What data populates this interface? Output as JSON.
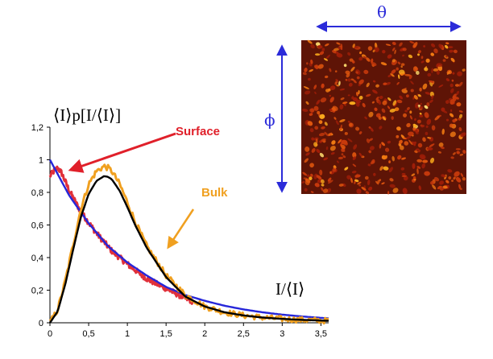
{
  "chart_data": {
    "type": "line",
    "ylabel": "⟨I⟩p[I/⟨I⟩]",
    "xlabel": "I/⟨I⟩",
    "xlim": [
      0,
      3.6
    ],
    "ylim": [
      0,
      1.2
    ],
    "x_tick_labels": [
      "0",
      "0,5",
      "1",
      "1,5",
      "2",
      "2,5",
      "3",
      "3,5"
    ],
    "y_tick_labels": [
      "0",
      "0,2",
      "0,4",
      "0,6",
      "0,8",
      "1",
      "1,2"
    ],
    "grid": false,
    "series": [
      {
        "color": "#2626d9",
        "style": "smooth",
        "x": [
          0,
          0.25,
          0.5,
          0.75,
          1.0,
          1.25,
          1.5,
          1.75,
          2.0,
          2.25,
          2.5,
          2.75,
          3.0,
          3.25,
          3.6
        ],
        "y": [
          1.0,
          0.78,
          0.61,
          0.47,
          0.37,
          0.29,
          0.22,
          0.17,
          0.135,
          0.105,
          0.082,
          0.064,
          0.05,
          0.039,
          0.027
        ]
      },
      {
        "color": "#e0303a",
        "style": "noisy",
        "x": [
          0,
          0.05,
          0.1,
          0.15,
          0.25,
          0.4,
          0.6,
          0.8,
          1.0,
          1.25,
          1.5,
          1.75,
          1.85
        ],
        "y": [
          0.9,
          0.93,
          0.95,
          0.92,
          0.81,
          0.68,
          0.55,
          0.44,
          0.36,
          0.27,
          0.21,
          0.15,
          0.13
        ]
      },
      {
        "color": "#000000",
        "style": "smooth",
        "x": [
          0,
          0.1,
          0.2,
          0.3,
          0.4,
          0.5,
          0.6,
          0.7,
          0.75,
          0.8,
          0.9,
          1.0,
          1.1,
          1.25,
          1.5,
          1.75,
          2.0,
          2.25,
          2.5,
          2.75,
          3.0,
          3.25,
          3.6
        ],
        "y": [
          0,
          0.07,
          0.24,
          0.45,
          0.65,
          0.79,
          0.87,
          0.9,
          0.895,
          0.88,
          0.81,
          0.71,
          0.6,
          0.46,
          0.28,
          0.16,
          0.1,
          0.065,
          0.045,
          0.032,
          0.024,
          0.018,
          0.012
        ]
      },
      {
        "color": "#f0a020",
        "style": "noisy",
        "x": [
          0,
          0.1,
          0.2,
          0.3,
          0.4,
          0.5,
          0.6,
          0.7,
          0.75,
          0.8,
          0.9,
          1.0,
          1.1,
          1.25,
          1.5,
          1.75,
          2.0,
          2.25,
          2.5,
          2.75,
          3.0,
          3.25,
          3.6
        ],
        "y": [
          0,
          0.08,
          0.26,
          0.48,
          0.7,
          0.85,
          0.93,
          0.96,
          0.95,
          0.93,
          0.85,
          0.74,
          0.62,
          0.47,
          0.29,
          0.17,
          0.1,
          0.065,
          0.045,
          0.032,
          0.024,
          0.018,
          0.012
        ]
      }
    ],
    "annotations": [
      {
        "label": "Surface",
        "color": "#e0202a"
      },
      {
        "label": "Bulk",
        "color": "#f0a020"
      }
    ]
  },
  "speckle": {
    "theta_label": "θ",
    "phi_label": "ϕ",
    "arrow_color": "#2b2bd9",
    "background": "#5e1406",
    "spot_colors": [
      "#a01e08",
      "#c83a0c",
      "#e0560e",
      "#f07a12",
      "#f8a81c",
      "#ffe070"
    ]
  }
}
